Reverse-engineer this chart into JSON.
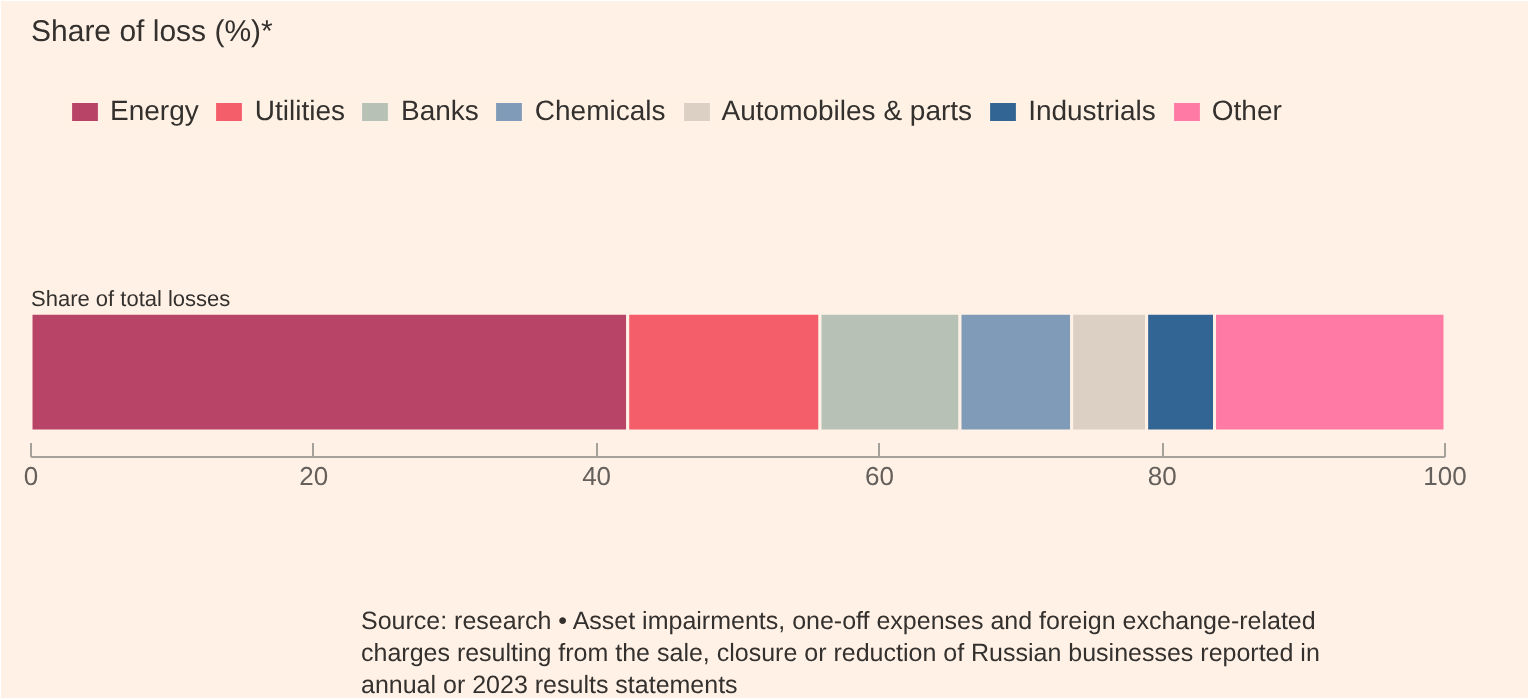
{
  "chart_data": {
    "type": "bar",
    "orientation": "horizontal",
    "stacked": true,
    "title": "Share of loss (%)*",
    "categories": [
      "Share of total losses"
    ],
    "series": [
      {
        "name": "Energy",
        "color": "#b84468",
        "values": [
          42.2
        ]
      },
      {
        "name": "Utilities",
        "color": "#f45d6a",
        "values": [
          13.6
        ]
      },
      {
        "name": "Banks",
        "color": "#b8c1b6",
        "values": [
          9.9
        ]
      },
      {
        "name": "Chemicals",
        "color": "#7f9bb7",
        "values": [
          7.9
        ]
      },
      {
        "name": "Automobiles & parts",
        "color": "#dccfc4",
        "values": [
          5.3
        ]
      },
      {
        "name": "Industrials",
        "color": "#326594",
        "values": [
          4.8
        ]
      },
      {
        "name": "Other",
        "color": "#ff7ba5",
        "values": [
          16.3
        ]
      }
    ],
    "xlim": [
      0,
      100
    ],
    "xticks": [
      0,
      20,
      40,
      60,
      80,
      100
    ],
    "grid": false,
    "legend": "top",
    "annotations": [
      "Source: research • Asset impairments, one-off expenses and foreign exchange-related charges resulting from the sale, closure or reduction of Russian businesses reported in annual or 2023 results statements"
    ]
  }
}
